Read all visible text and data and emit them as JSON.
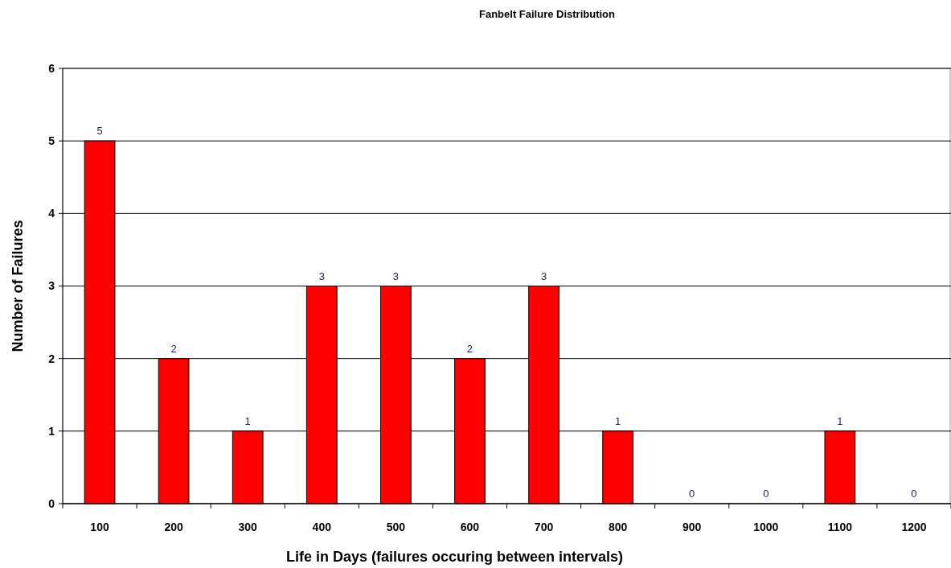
{
  "chart_data": {
    "type": "bar",
    "title": "Fanbelt Failure  Distribution",
    "xlabel": "Life in Days  (failures occuring between intervals)",
    "ylabel": "Number of Failures",
    "categories": [
      "100",
      "200",
      "300",
      "400",
      "500",
      "600",
      "700",
      "800",
      "900",
      "1000",
      "1100",
      "1200"
    ],
    "values": [
      5,
      2,
      1,
      3,
      3,
      2,
      3,
      1,
      0,
      0,
      1,
      0
    ],
    "color": "#ff0000",
    "ylim": [
      0,
      6
    ],
    "yticks": [
      0,
      1,
      2,
      3,
      4,
      5,
      6
    ],
    "grid": "y",
    "data_labels": true
  }
}
